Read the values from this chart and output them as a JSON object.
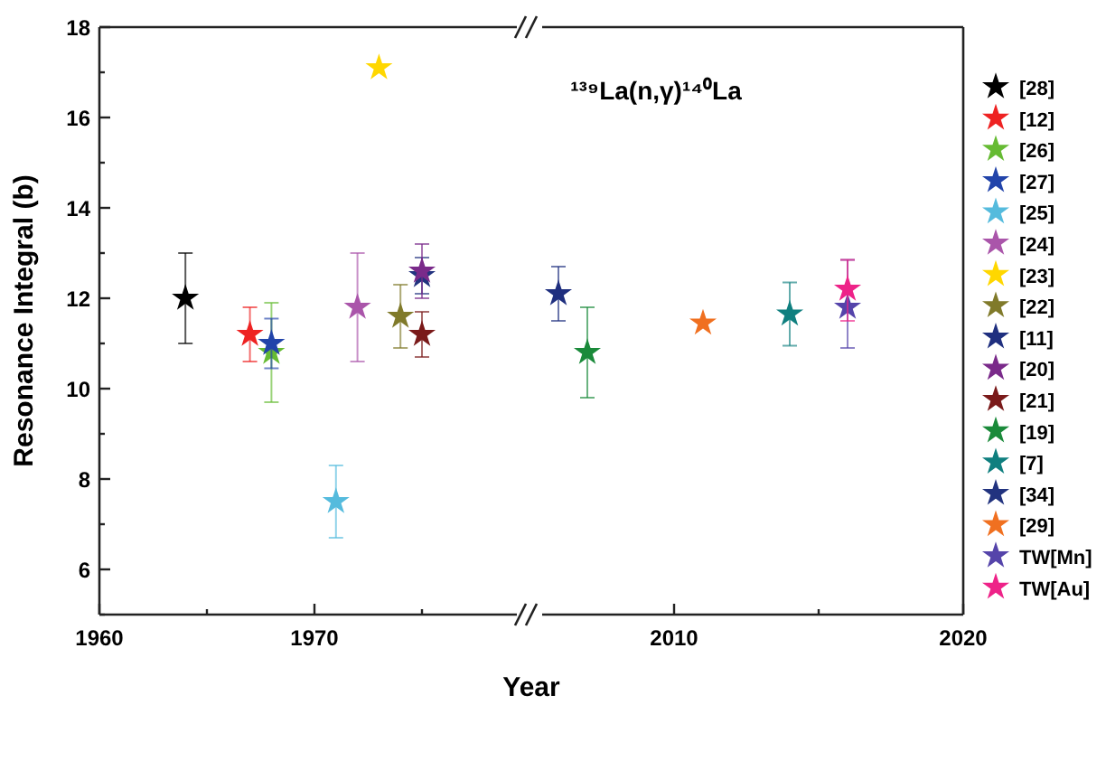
{
  "chart_data": [
    {
      "type": "scatter",
      "xlabel": "Year",
      "ylabel": "Resonance Integral (b)",
      "xlim": [
        1960,
        1980
      ],
      "xticks": [
        1960,
        {
          "value": 1965,
          "label": null
        },
        1970,
        {
          "value": 1975,
          "label": null
        }
      ],
      "ylim": [
        5,
        18
      ],
      "yticks": [
        {
          "value": 5,
          "label": null
        },
        6,
        {
          "value": 7,
          "label": null
        },
        8,
        {
          "value": 9,
          "label": null
        },
        10,
        {
          "value": 11,
          "label": null
        },
        12,
        {
          "value": 13,
          "label": null
        },
        14,
        {
          "value": 15,
          "label": null
        },
        16,
        {
          "value": 17,
          "label": null
        },
        18
      ],
      "marker": "star",
      "grid": false,
      "legend": false,
      "series": [
        {
          "color": "#000000",
          "x": [
            1964
          ],
          "values": [
            12.0
          ],
          "errors": [
            1.0
          ]
        },
        {
          "color": "#ee2222",
          "x": [
            1967
          ],
          "values": [
            11.2
          ],
          "errors": [
            0.6
          ]
        },
        {
          "color": "#66bb33",
          "x": [
            1968
          ],
          "values": [
            10.8
          ],
          "errors": [
            [
              9.7,
              11.9
            ]
          ]
        },
        {
          "color": "#2244aa",
          "x": [
            1968
          ],
          "values": [
            11.0
          ],
          "errors": [
            0.55
          ]
        },
        {
          "color": "#55bbdd",
          "x": [
            1971
          ],
          "values": [
            7.5
          ],
          "errors": [
            0.8
          ]
        },
        {
          "color": "#aa55aa",
          "x": [
            1972
          ],
          "values": [
            11.8
          ],
          "errors": [
            1.2
          ]
        },
        {
          "color": "#ffd700",
          "x": [
            1973
          ],
          "values": [
            17.1
          ]
        },
        {
          "color": "#807a2a",
          "x": [
            1974
          ],
          "values": [
            11.6
          ],
          "errors": [
            0.7
          ]
        },
        {
          "color": "#22337f",
          "x": [
            1975
          ],
          "values": [
            12.5
          ],
          "errors": [
            0.4
          ]
        },
        {
          "color": "#7a1a1a",
          "x": [
            1975
          ],
          "values": [
            11.2
          ],
          "errors": [
            0.5
          ]
        },
        {
          "color": "#7a2a8a",
          "x": [
            1975
          ],
          "values": [
            12.6
          ],
          "errors": [
            0.6
          ]
        }
      ]
    },
    {
      "type": "scatter",
      "title": "¹³⁹La(n,γ)¹⁴⁰La",
      "xlim": [
        2005,
        2020
      ],
      "xticks": [
        2010,
        {
          "value": 2015,
          "label": null
        },
        2020
      ],
      "ylim": [
        5,
        18
      ],
      "tick_labels": "x",
      "marker": "star",
      "grid": false,
      "legend": "right",
      "series": [
        {
          "name": "[28]",
          "color": "#000000"
        },
        {
          "name": "[12]",
          "color": "#ee2222"
        },
        {
          "name": "[26]",
          "color": "#66bb33"
        },
        {
          "name": "[27]",
          "color": "#2244aa"
        },
        {
          "name": "[25]",
          "color": "#55bbdd"
        },
        {
          "name": "[24]",
          "color": "#aa55aa"
        },
        {
          "name": "[23]",
          "color": "#ffd700"
        },
        {
          "name": "[22]",
          "color": "#807a2a"
        },
        {
          "name": "[11]",
          "color": "#1f2f7f",
          "x": [
            2006
          ],
          "values": [
            12.1
          ],
          "errors": [
            0.6
          ]
        },
        {
          "name": "[20]",
          "color": "#7a2a8a"
        },
        {
          "name": "[21]",
          "color": "#7a1a1a"
        },
        {
          "name": "[19]",
          "color": "#1a8a3a",
          "x": [
            2007
          ],
          "values": [
            10.8
          ],
          "errors": [
            1.0
          ]
        },
        {
          "name": "[7]",
          "color": "#0f7f7f",
          "x": [
            2014
          ],
          "values": [
            11.65
          ],
          "errors": [
            0.7
          ]
        },
        {
          "name": "[34]",
          "color": "#22337f"
        },
        {
          "name": "[29]",
          "color": "#f07020",
          "x": [
            2011
          ],
          "values": [
            11.45
          ]
        },
        {
          "name": "TW[Mn]",
          "color": "#5544aa",
          "x": [
            2016
          ],
          "values": [
            11.8
          ],
          "errors": [
            [
              10.9,
              12.85
            ]
          ]
        },
        {
          "name": "TW[Au]",
          "color": "#ee2288",
          "x": [
            2016
          ],
          "values": [
            12.2
          ],
          "errors": [
            [
              11.5,
              12.85
            ]
          ]
        }
      ]
    }
  ]
}
